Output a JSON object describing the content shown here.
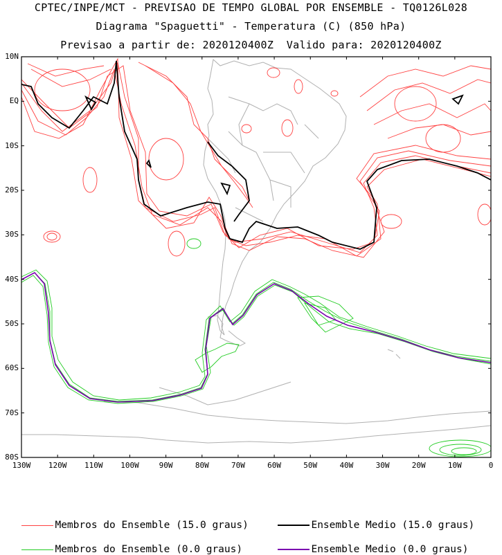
{
  "header": {
    "line1": "CPTEC/INPE/MCT - PREVISAO DE TEMPO GLOBAL POR ENSEMBLE - TQ0126L028",
    "line2": "Diagrama \"Spaguetti\" - Temperatura (C) (850 hPa)",
    "line3": "Previsao a partir de: 2020120400Z  Valido para: 2020120400Z"
  },
  "map": {
    "lat_labels": [
      "10N",
      "EQ",
      "10S",
      "20S",
      "30S",
      "40S",
      "50S",
      "60S",
      "70S",
      "80S"
    ],
    "lon_labels": [
      "130W",
      "120W",
      "110W",
      "100W",
      "90W",
      "80W",
      "70W",
      "60W",
      "50W",
      "40W",
      "30W",
      "20W",
      "10W",
      "0"
    ],
    "lat_range": [
      -80,
      10
    ],
    "lon_range": [
      -130,
      0
    ],
    "colors": {
      "members_15": "#ff4040",
      "mean_15": "#000000",
      "members_0": "#22cc22",
      "mean_0": "#7a00b0",
      "coast": "#b0b0b0"
    }
  },
  "legend": {
    "members_15": "Membros do Ensemble (15.0 graus)",
    "mean_15": "Ensemble Medio (15.0 graus)",
    "members_0": "Membros do Ensemble (0.0 graus)",
    "mean_0": "Ensemble Medio (0.0 graus)"
  }
}
